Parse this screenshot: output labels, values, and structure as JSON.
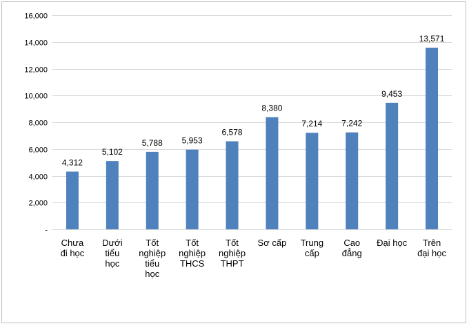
{
  "chart_data": {
    "type": "bar",
    "categories": [
      [
        "Chưa",
        "đi học"
      ],
      [
        "Dưới",
        "tiểu",
        "học"
      ],
      [
        "Tốt",
        "nghiệp",
        "tiểu",
        "học"
      ],
      [
        "Tốt",
        "nghiệp",
        "THCS"
      ],
      [
        "Tốt",
        "nghiệp",
        "THPT"
      ],
      [
        "Sơ cấp"
      ],
      [
        "Trung",
        "cấp"
      ],
      [
        "Cao",
        "đẳng"
      ],
      [
        "Đại học"
      ],
      [
        "Trên",
        "đại học"
      ]
    ],
    "values": [
      4312,
      5102,
      5788,
      5953,
      6578,
      8380,
      7214,
      7242,
      9453,
      13571
    ],
    "value_labels": [
      "4,312",
      "5,102",
      "5,788",
      "5,953",
      "6,578",
      "8,380",
      "7,214",
      "7,242",
      "9,453",
      "13,571"
    ],
    "ylim": [
      0,
      16000
    ],
    "yticks": [
      0,
      2000,
      4000,
      6000,
      8000,
      10000,
      12000,
      14000,
      16000
    ],
    "ytick_labels": [
      "-",
      "2,000",
      "4,000",
      "6,000",
      "8,000",
      "10,000",
      "12,000",
      "14,000",
      "16,000"
    ],
    "grid": true,
    "bar_color": "#4f81bd",
    "grid_color": "#d9d9d9"
  }
}
